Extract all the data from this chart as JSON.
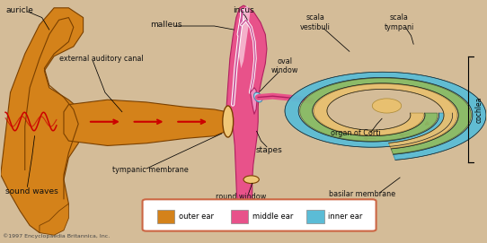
{
  "bg_color": "#d4bc98",
  "copyright": "©1997 Encyclopaedia Britannica, Inc.",
  "outer_ear_color": "#d4821a",
  "middle_ear_color": "#e8528a",
  "inner_ear_color": "#5bbcd6",
  "legend_bg": "#ffffff",
  "legend_border": "#cc6644",
  "arrow_color": "#cc0000",
  "label_color": "#111111",
  "legend_items": [
    {
      "label": "outer ear",
      "color": "#d4821a"
    },
    {
      "label": "middle ear",
      "color": "#e8528a"
    },
    {
      "label": "inner ear",
      "color": "#5bbcd6"
    }
  ],
  "figsize": [
    5.42,
    2.71
  ],
  "dpi": 100
}
